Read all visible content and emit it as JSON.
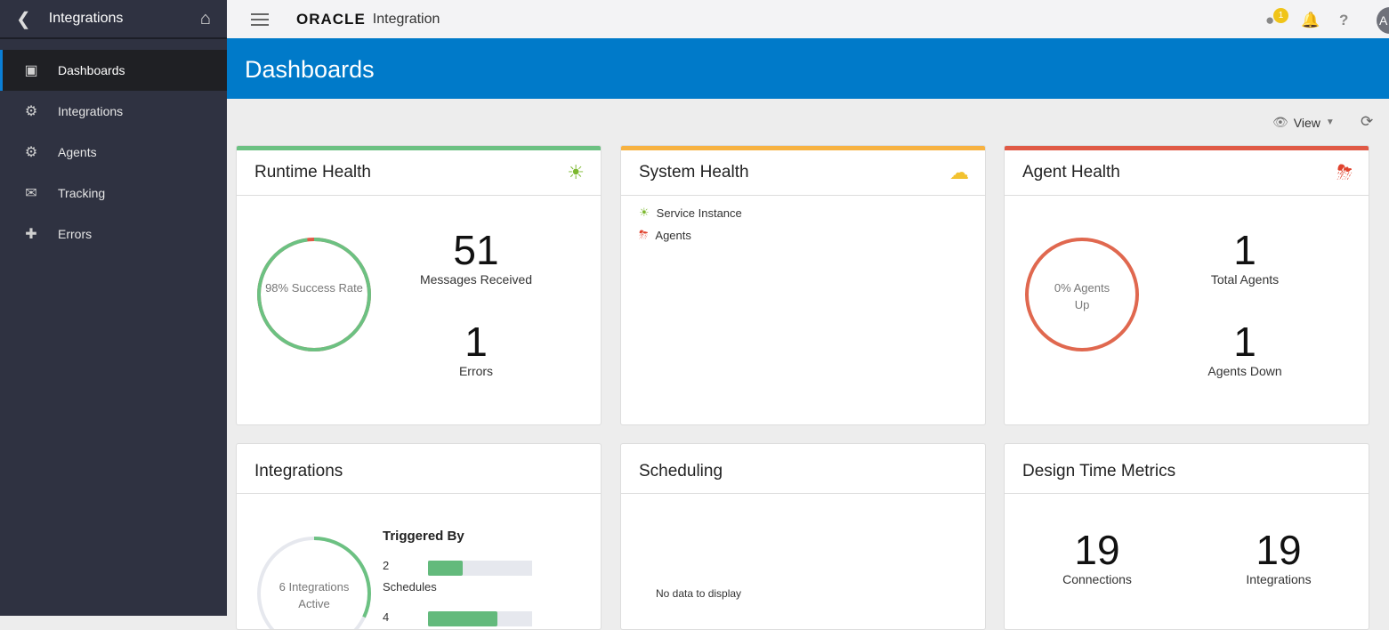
{
  "sidebar": {
    "title": "Integrations",
    "items": [
      {
        "label": "Dashboards",
        "icon": "monitor-icon",
        "active": true
      },
      {
        "label": "Integrations",
        "icon": "integrations-icon"
      },
      {
        "label": "Agents",
        "icon": "gear-icon"
      },
      {
        "label": "Tracking",
        "icon": "envelope-icon"
      },
      {
        "label": "Errors",
        "icon": "first-aid-icon"
      }
    ]
  },
  "topbar": {
    "logo": "ORACLE",
    "product": "Integration",
    "notification_count": "1",
    "avatar": "A"
  },
  "page": {
    "title": "Dashboards",
    "view_label": "View"
  },
  "runtime": {
    "title": "Runtime Health",
    "ring_label": "98% Success Rate",
    "success_rate": 0.98,
    "messages": "51",
    "messages_label": "Messages Received",
    "errors": "1",
    "errors_label": "Errors",
    "status_color": "#6cc182"
  },
  "system": {
    "title": "System Health",
    "items": [
      {
        "label": "Service Instance",
        "icon": "sun-icon"
      },
      {
        "label": "Agents",
        "icon": "storm-icon"
      }
    ],
    "status_color": "#f7b241"
  },
  "agent": {
    "title": "Agent Health",
    "ring_label": "0% Agents Up",
    "up_rate": 0,
    "total": "1",
    "total_label": "Total Agents",
    "down": "1",
    "down_label": "Agents Down",
    "status_color": "#e05a46"
  },
  "integrations": {
    "title": "Integrations",
    "ring_label": "6 Integrations Active",
    "triggered_by": "Triggered By",
    "rows": [
      {
        "value": "2",
        "label": "Schedules",
        "fraction": 0.33
      },
      {
        "value": "4",
        "label": "",
        "fraction": 0.67
      }
    ]
  },
  "scheduling": {
    "title": "Scheduling",
    "empty": "No data to display"
  },
  "design": {
    "title": "Design Time Metrics",
    "connections": "19",
    "connections_label": "Connections",
    "integrations": "19",
    "integrations_label": "Integrations"
  }
}
